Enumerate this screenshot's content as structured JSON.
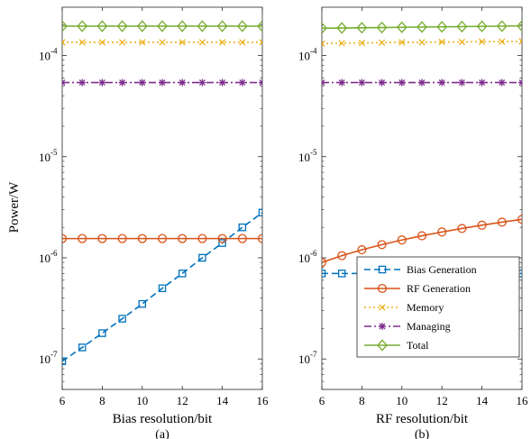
{
  "ylabel": "Power/W",
  "chart_data": [
    {
      "type": "line",
      "panel_label": "(a)",
      "xlabel": "Bias resolution/bit",
      "ylabel": "Power/W",
      "yscale": "log",
      "xlim": [
        6,
        16
      ],
      "ylim": [
        5e-08,
        0.0003
      ],
      "x": [
        6,
        7,
        8,
        9,
        10,
        11,
        12,
        13,
        14,
        15,
        16
      ],
      "xticks": [
        "6",
        "8",
        "10",
        "12",
        "14",
        "16"
      ],
      "yticks": [
        {
          "base": "10",
          "exp": "-7",
          "value": 1e-07
        },
        {
          "base": "10",
          "exp": "-6",
          "value": 1e-06
        },
        {
          "base": "10",
          "exp": "-5",
          "value": 1e-05
        },
        {
          "base": "10",
          "exp": "-4",
          "value": 0.0001
        }
      ],
      "grid": false,
      "series": [
        {
          "name": "Bias Generation",
          "color": "#0072BD",
          "marker": "square",
          "dash": "dashed",
          "values": [
            9.5e-08,
            1.3e-07,
            1.8e-07,
            2.5e-07,
            3.5e-07,
            5e-07,
            7e-07,
            1e-06,
            1.4e-06,
            2e-06,
            2.8e-06
          ]
        },
        {
          "name": "RF Generation",
          "color": "#D95319",
          "marker": "circle",
          "dash": "solid",
          "values": [
            1.55e-06,
            1.55e-06,
            1.55e-06,
            1.55e-06,
            1.55e-06,
            1.55e-06,
            1.55e-06,
            1.55e-06,
            1.55e-06,
            1.55e-06,
            1.55e-06
          ]
        },
        {
          "name": "Memory",
          "color": "#EDB120",
          "marker": "x",
          "dash": "dotted",
          "values": [
            0.000135,
            0.000135,
            0.000135,
            0.000135,
            0.000135,
            0.000135,
            0.000135,
            0.000135,
            0.000135,
            0.000135,
            0.000135
          ]
        },
        {
          "name": "Managing",
          "color": "#7E2F8E",
          "marker": "asterisk",
          "dash": "dashdot",
          "values": [
            5.4e-05,
            5.4e-05,
            5.4e-05,
            5.4e-05,
            5.4e-05,
            5.4e-05,
            5.4e-05,
            5.4e-05,
            5.4e-05,
            5.4e-05,
            5.4e-05
          ]
        },
        {
          "name": "Total",
          "color": "#77AC30",
          "marker": "diamond",
          "dash": "solid",
          "values": [
            0.000195,
            0.000195,
            0.000195,
            0.000195,
            0.000195,
            0.000195,
            0.000195,
            0.000195,
            0.000195,
            0.000195,
            0.000195
          ]
        }
      ]
    },
    {
      "type": "line",
      "panel_label": "(b)",
      "xlabel": "RF resolution/bit",
      "yscale": "log",
      "xlim": [
        6,
        16
      ],
      "ylim": [
        5e-08,
        0.0003
      ],
      "x": [
        6,
        7,
        8,
        9,
        10,
        11,
        12,
        13,
        14,
        15,
        16
      ],
      "xticks": [
        "6",
        "8",
        "10",
        "12",
        "14",
        "16"
      ],
      "yticks": [
        {
          "base": "10",
          "exp": "-7",
          "value": 1e-07
        },
        {
          "base": "10",
          "exp": "-6",
          "value": 1e-06
        },
        {
          "base": "10",
          "exp": "-5",
          "value": 1e-05
        },
        {
          "base": "10",
          "exp": "-4",
          "value": 0.0001
        }
      ],
      "grid": false,
      "legend": "bottom-right",
      "series": [
        {
          "name": "Bias Generation",
          "color": "#0072BD",
          "marker": "square",
          "dash": "dashed",
          "values": [
            7e-07,
            7e-07,
            7e-07,
            7e-07,
            7e-07,
            7e-07,
            7e-07,
            7e-07,
            7e-07,
            7e-07,
            7e-07
          ]
        },
        {
          "name": "RF Generation",
          "color": "#D95319",
          "marker": "circle",
          "dash": "solid",
          "values": [
            9e-07,
            1.05e-06,
            1.2e-06,
            1.35e-06,
            1.5e-06,
            1.65e-06,
            1.8e-06,
            1.95e-06,
            2.1e-06,
            2.25e-06,
            2.4e-06
          ]
        },
        {
          "name": "Memory",
          "color": "#EDB120",
          "marker": "x",
          "dash": "dotted",
          "values": [
            0.000131,
            0.000132,
            0.000133,
            0.000134,
            0.000135,
            0.000135,
            0.000136,
            0.000136,
            0.000137,
            0.000137,
            0.000138
          ]
        },
        {
          "name": "Managing",
          "color": "#7E2F8E",
          "marker": "asterisk",
          "dash": "dashdot",
          "values": [
            5.4e-05,
            5.4e-05,
            5.4e-05,
            5.4e-05,
            5.4e-05,
            5.4e-05,
            5.4e-05,
            5.4e-05,
            5.4e-05,
            5.4e-05,
            5.4e-05
          ]
        },
        {
          "name": "Total",
          "color": "#77AC30",
          "marker": "diamond",
          "dash": "solid",
          "values": [
            0.000186,
            0.000187,
            0.000188,
            0.000189,
            0.00019,
            0.000191,
            0.000192,
            0.000193,
            0.000194,
            0.000195,
            0.000196
          ]
        }
      ]
    }
  ]
}
